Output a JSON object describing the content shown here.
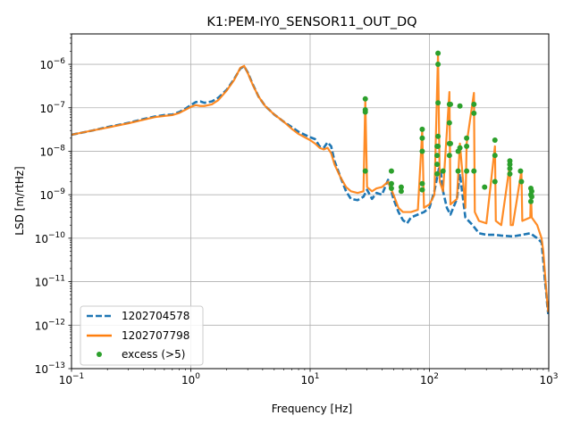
{
  "chart_data": {
    "type": "line",
    "title": "K1:PEM-IY0_SENSOR11_OUT_DQ",
    "xlabel": "Frequency [Hz]",
    "ylabel": "LSD [m/rtHz]",
    "xscale": "log",
    "yscale": "log",
    "xlim": [
      0.1,
      1000
    ],
    "ylim": [
      1e-13,
      5e-06
    ],
    "grid": true,
    "legend_position": "lower-left",
    "x_ticks": [
      {
        "value": 0.1,
        "base": "10",
        "exp": "−1"
      },
      {
        "value": 1,
        "base": "10",
        "exp": "0"
      },
      {
        "value": 10,
        "base": "10",
        "exp": "1"
      },
      {
        "value": 100,
        "base": "10",
        "exp": "2"
      },
      {
        "value": 1000,
        "base": "10",
        "exp": "3"
      }
    ],
    "y_ticks": [
      {
        "value": 1e-13,
        "base": "10",
        "exp": "−13"
      },
      {
        "value": 1e-12,
        "base": "10",
        "exp": "−12"
      },
      {
        "value": 1e-11,
        "base": "10",
        "exp": "−11"
      },
      {
        "value": 1e-10,
        "base": "10",
        "exp": "−10"
      },
      {
        "value": 1e-09,
        "base": "10",
        "exp": "−9"
      },
      {
        "value": 1e-08,
        "base": "10",
        "exp": "−8"
      },
      {
        "value": 1e-07,
        "base": "10",
        "exp": "−7"
      },
      {
        "value": 1e-06,
        "base": "10",
        "exp": "−6"
      }
    ],
    "series": [
      {
        "name": "1202704578",
        "style": "dashed",
        "color": "#1f77b4",
        "points": [
          [
            0.1,
            2.4e-08
          ],
          [
            0.15,
            3e-08
          ],
          [
            0.2,
            3.6e-08
          ],
          [
            0.3,
            4.5e-08
          ],
          [
            0.4,
            5.5e-08
          ],
          [
            0.5,
            6.3e-08
          ],
          [
            0.6,
            6.8e-08
          ],
          [
            0.7,
            7e-08
          ],
          [
            0.8,
            8e-08
          ],
          [
            0.9,
            9.5e-08
          ],
          [
            1.0,
            1.15e-07
          ],
          [
            1.1,
            1.35e-07
          ],
          [
            1.2,
            1.4e-07
          ],
          [
            1.3,
            1.3e-07
          ],
          [
            1.5,
            1.4e-07
          ],
          [
            1.7,
            1.7e-07
          ],
          [
            2.0,
            2.6e-07
          ],
          [
            2.3,
            4.5e-07
          ],
          [
            2.6,
            8e-07
          ],
          [
            2.8,
            9e-07
          ],
          [
            3.0,
            6.5e-07
          ],
          [
            3.3,
            3.5e-07
          ],
          [
            3.7,
            1.8e-07
          ],
          [
            4.2,
            1.1e-07
          ],
          [
            5.0,
            7e-08
          ],
          [
            6.0,
            4.8e-08
          ],
          [
            7.0,
            3.6e-08
          ],
          [
            8.0,
            2.8e-08
          ],
          [
            9.0,
            2.4e-08
          ],
          [
            10.0,
            2.1e-08
          ],
          [
            11.0,
            1.9e-08
          ],
          [
            12.0,
            1.3e-08
          ],
          [
            13.0,
            1.2e-08
          ],
          [
            14.0,
            1.6e-08
          ],
          [
            15.0,
            1.3e-08
          ],
          [
            16.0,
            6e-09
          ],
          [
            18.0,
            2.5e-09
          ],
          [
            20.0,
            1.2e-09
          ],
          [
            22.0,
            8e-10
          ],
          [
            25.0,
            7.5e-10
          ],
          [
            28.0,
            9e-10
          ],
          [
            30.0,
            1.3e-09
          ],
          [
            33.0,
            8e-10
          ],
          [
            36.0,
            1.1e-09
          ],
          [
            40.0,
            1e-09
          ],
          [
            45.0,
            2.2e-09
          ],
          [
            50.0,
            8e-10
          ],
          [
            55.0,
            4e-10
          ],
          [
            60.0,
            2.6e-10
          ],
          [
            65.0,
            2.2e-10
          ],
          [
            70.0,
            3e-10
          ],
          [
            80.0,
            3.5e-10
          ],
          [
            90.0,
            4e-10
          ],
          [
            100.0,
            5e-10
          ],
          [
            110.0,
            1.2e-09
          ],
          [
            120.0,
            4e-09
          ],
          [
            125.0,
            3e-09
          ],
          [
            130.0,
            1.2e-09
          ],
          [
            140.0,
            5e-10
          ],
          [
            150.0,
            3.5e-10
          ],
          [
            170.0,
            8e-10
          ],
          [
            180.0,
            3e-09
          ],
          [
            200.0,
            3e-10
          ],
          [
            230.0,
            2e-10
          ],
          [
            260.0,
            1.3e-10
          ],
          [
            300.0,
            1.2e-10
          ],
          [
            350.0,
            1.2e-10
          ],
          [
            400.0,
            1.15e-10
          ],
          [
            500.0,
            1.1e-10
          ],
          [
            600.0,
            1.2e-10
          ],
          [
            700.0,
            1.3e-10
          ],
          [
            800.0,
            1e-10
          ],
          [
            870.0,
            8e-11
          ],
          [
            900.0,
            3e-11
          ],
          [
            930.0,
            1e-11
          ],
          [
            950.0,
            6e-12
          ],
          [
            970.0,
            3e-12
          ],
          [
            990.0,
            1.8e-12
          ]
        ]
      },
      {
        "name": "1202707798",
        "style": "solid",
        "color": "#ff7f0e",
        "points": [
          [
            0.1,
            2.4e-08
          ],
          [
            0.15,
            3e-08
          ],
          [
            0.2,
            3.5e-08
          ],
          [
            0.3,
            4.4e-08
          ],
          [
            0.4,
            5.3e-08
          ],
          [
            0.5,
            6.1e-08
          ],
          [
            0.6,
            6.5e-08
          ],
          [
            0.7,
            6.8e-08
          ],
          [
            0.8,
            7.6e-08
          ],
          [
            0.9,
            9e-08
          ],
          [
            1.0,
            1.05e-07
          ],
          [
            1.1,
            1.15e-07
          ],
          [
            1.2,
            1.1e-07
          ],
          [
            1.3,
            1.1e-07
          ],
          [
            1.5,
            1.2e-07
          ],
          [
            1.7,
            1.5e-07
          ],
          [
            2.0,
            2.5e-07
          ],
          [
            2.3,
            4.3e-07
          ],
          [
            2.6,
            8.3e-07
          ],
          [
            2.8,
            9.2e-07
          ],
          [
            3.0,
            6.3e-07
          ],
          [
            3.3,
            3.4e-07
          ],
          [
            3.7,
            1.8e-07
          ],
          [
            4.2,
            1.1e-07
          ],
          [
            5.0,
            7e-08
          ],
          [
            6.0,
            4.8e-08
          ],
          [
            7.0,
            3.3e-08
          ],
          [
            8.0,
            2.5e-08
          ],
          [
            9.0,
            2.1e-08
          ],
          [
            10.0,
            1.8e-08
          ],
          [
            11.0,
            1.5e-08
          ],
          [
            12.0,
            1.2e-08
          ],
          [
            13.0,
            1.1e-08
          ],
          [
            14.0,
            1.2e-08
          ],
          [
            15.0,
            9e-09
          ],
          [
            16.0,
            5e-09
          ],
          [
            18.0,
            2.5e-09
          ],
          [
            20.0,
            1.5e-09
          ],
          [
            22.0,
            1.2e-09
          ],
          [
            25.0,
            1.1e-09
          ],
          [
            28.0,
            1.2e-09
          ],
          [
            29.0,
            1.6e-07
          ],
          [
            30.0,
            1.5e-09
          ],
          [
            33.0,
            1.2e-09
          ],
          [
            36.0,
            1.4e-09
          ],
          [
            40.0,
            1.5e-09
          ],
          [
            45.0,
            2e-09
          ],
          [
            50.0,
            1e-09
          ],
          [
            55.0,
            5e-10
          ],
          [
            60.0,
            4e-10
          ],
          [
            70.0,
            4e-10
          ],
          [
            80.0,
            4.5e-10
          ],
          [
            87.0,
            3e-08
          ],
          [
            90.0,
            5e-10
          ],
          [
            100.0,
            6e-10
          ],
          [
            110.0,
            1e-09
          ],
          [
            118.0,
            1.8e-06
          ],
          [
            122.0,
            2e-09
          ],
          [
            130.0,
            1.2e-09
          ],
          [
            147.0,
            2.3e-07
          ],
          [
            150.0,
            6e-10
          ],
          [
            170.0,
            8e-10
          ],
          [
            180.0,
            1.5e-08
          ],
          [
            200.0,
            5e-10
          ],
          [
            205.0,
            1.5e-08
          ],
          [
            236.0,
            2.2e-07
          ],
          [
            240.0,
            4e-10
          ],
          [
            260.0,
            2.5e-10
          ],
          [
            300.0,
            2.2e-10
          ],
          [
            354.0,
            1.3e-08
          ],
          [
            360.0,
            2.5e-10
          ],
          [
            400.0,
            2e-10
          ],
          [
            472.0,
            5e-09
          ],
          [
            480.0,
            2e-10
          ],
          [
            500.0,
            2e-10
          ],
          [
            590.0,
            3.5e-09
          ],
          [
            600.0,
            2.5e-10
          ],
          [
            700.0,
            3e-10
          ],
          [
            708.0,
            1.2e-09
          ],
          [
            720.0,
            3e-10
          ],
          [
            800.0,
            2e-10
          ],
          [
            870.0,
            1e-10
          ],
          [
            900.0,
            5e-11
          ],
          [
            930.0,
            1.5e-11
          ],
          [
            950.0,
            7e-12
          ],
          [
            970.0,
            3.5e-12
          ],
          [
            990.0,
            2e-12
          ]
        ]
      },
      {
        "name": "excess (>5)",
        "style": "markers",
        "color": "#2ca02c",
        "points": [
          [
            29.0,
            1.6e-07
          ],
          [
            29.0,
            9e-08
          ],
          [
            29.0,
            8e-08
          ],
          [
            29.0,
            3.5e-09
          ],
          [
            48.0,
            3.5e-09
          ],
          [
            48.0,
            1.8e-09
          ],
          [
            48.0,
            1.4e-09
          ],
          [
            58.0,
            1.5e-09
          ],
          [
            58.0,
            1.2e-09
          ],
          [
            87.0,
            3.2e-08
          ],
          [
            87.0,
            2e-08
          ],
          [
            87.0,
            1e-08
          ],
          [
            87.0,
            1.8e-09
          ],
          [
            87.0,
            1.3e-09
          ],
          [
            116.0,
            1.3e-08
          ],
          [
            116.0,
            8e-09
          ],
          [
            116.0,
            5e-09
          ],
          [
            116.0,
            3e-09
          ],
          [
            118.0,
            1.8e-06
          ],
          [
            118.0,
            1e-06
          ],
          [
            118.0,
            1.3e-07
          ],
          [
            118.0,
            2.2e-08
          ],
          [
            118.0,
            1.3e-08
          ],
          [
            130.0,
            3.5e-09
          ],
          [
            147.0,
            1.2e-07
          ],
          [
            147.0,
            4.5e-08
          ],
          [
            147.0,
            1.5e-08
          ],
          [
            147.0,
            8e-09
          ],
          [
            150.0,
            1.2e-07
          ],
          [
            150.0,
            1.5e-08
          ],
          [
            174.0,
            1e-08
          ],
          [
            174.0,
            3.5e-09
          ],
          [
            180.0,
            1.2e-08
          ],
          [
            180.0,
            1.1e-07
          ],
          [
            205.0,
            2e-08
          ],
          [
            205.0,
            1.3e-08
          ],
          [
            205.0,
            3.5e-09
          ],
          [
            236.0,
            1.2e-07
          ],
          [
            236.0,
            7.5e-08
          ],
          [
            236.0,
            3.5e-09
          ],
          [
            290.0,
            1.5e-09
          ],
          [
            354.0,
            1.8e-08
          ],
          [
            354.0,
            8e-09
          ],
          [
            354.0,
            2e-09
          ],
          [
            472.0,
            6e-09
          ],
          [
            472.0,
            5e-09
          ],
          [
            472.0,
            4e-09
          ],
          [
            472.0,
            3e-09
          ],
          [
            580.0,
            3.5e-09
          ],
          [
            590.0,
            2e-09
          ],
          [
            708.0,
            1.4e-09
          ],
          [
            708.0,
            1e-09
          ],
          [
            708.0,
            7e-10
          ],
          [
            720.0,
            1.2e-09
          ],
          [
            720.0,
            9e-10
          ]
        ]
      }
    ]
  }
}
